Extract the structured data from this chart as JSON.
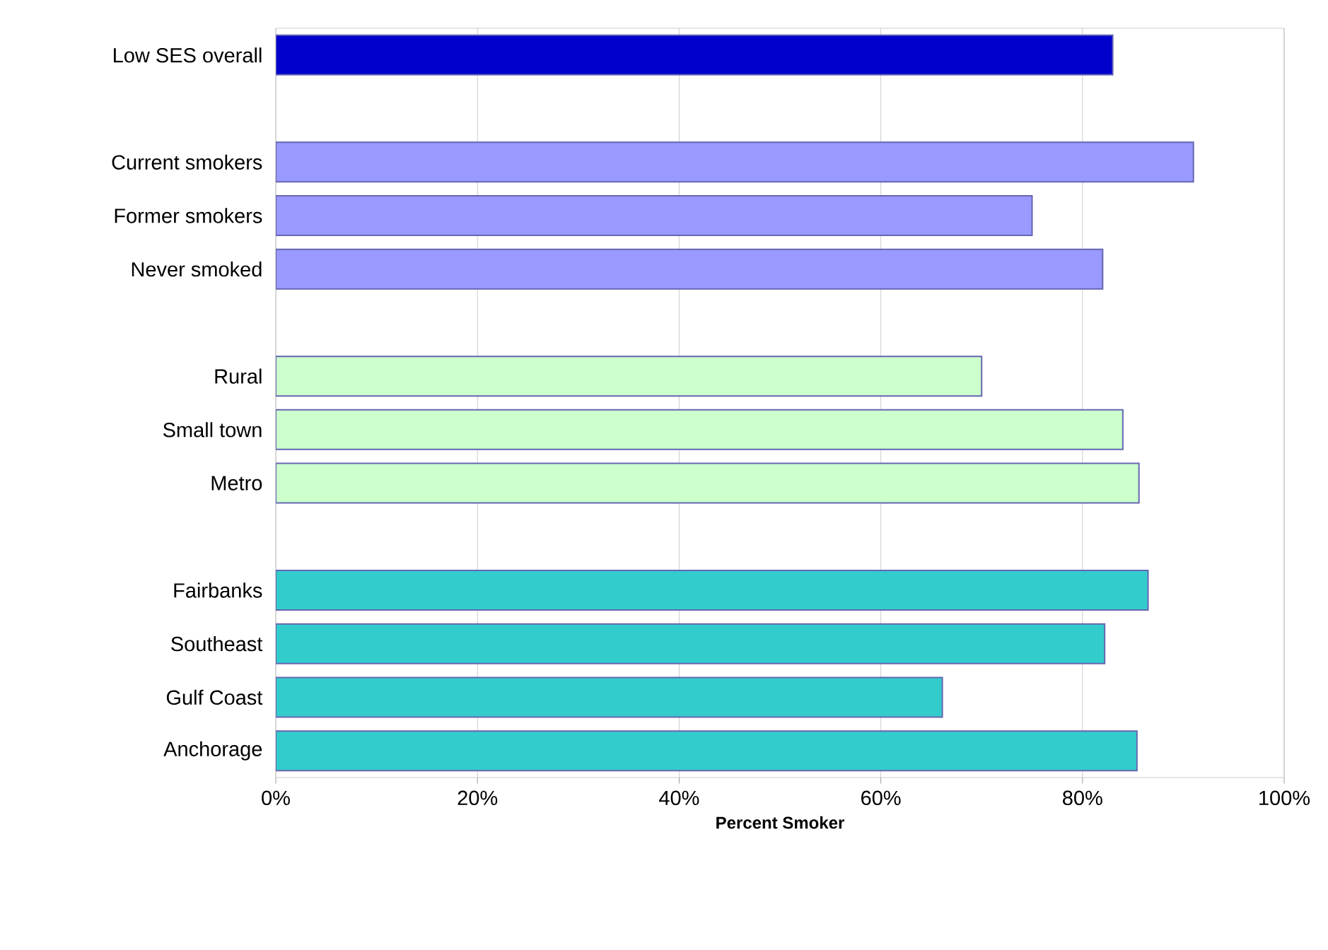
{
  "chart_data": {
    "type": "bar",
    "orientation": "horizontal",
    "xlabel": "Percent Smoker",
    "categories": [
      "Low SES overall",
      null,
      "Current smokers",
      "Former smokers",
      "Never smoked",
      null,
      "Rural",
      "Small town",
      "Metro",
      null,
      "Fairbanks",
      "Southeast",
      "Gulf Coast",
      "Anchorage"
    ],
    "values": [
      83,
      null,
      91,
      75,
      82,
      null,
      70,
      84,
      85.6,
      null,
      86.5,
      82.2,
      66.1,
      85.4
    ],
    "colors": [
      "#0000cc",
      null,
      "#9999ff",
      "#9999ff",
      "#9999ff",
      null,
      "#ccffcc",
      "#ccffcc",
      "#ccffcc",
      null,
      "#33cccc",
      "#33cccc",
      "#33cccc",
      "#33cccc"
    ],
    "xlim": [
      0,
      100
    ],
    "xticks": [
      {
        "value": 0,
        "label": "0%"
      },
      {
        "value": 20,
        "label": "20%"
      },
      {
        "value": 40,
        "label": "40%"
      },
      {
        "value": 60,
        "label": "60%"
      },
      {
        "value": 80,
        "label": "80%"
      },
      {
        "value": 100,
        "label": "100%"
      }
    ],
    "grid": "x"
  }
}
